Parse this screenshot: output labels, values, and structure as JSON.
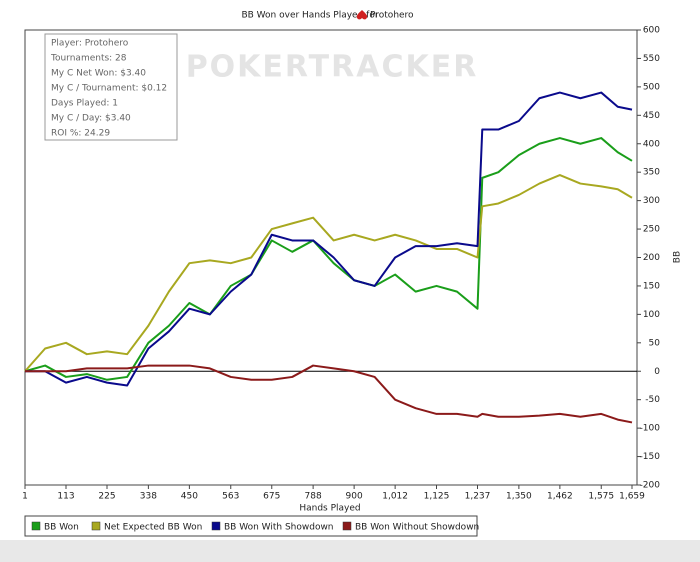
{
  "chart_data": {
    "type": "line",
    "title": "BB Won over Hands Played for",
    "player": "Protohero",
    "watermark": "POKERTRACKER",
    "info": [
      "Player: Protohero",
      "Tournaments: 28",
      "My C Net Won: $3.40",
      "My C / Tournament: $0.12",
      "Days Played: 1",
      "My C / Day: $3.40",
      "ROI %: 24.29"
    ],
    "xlabel": "Hands Played",
    "ylabel": "BB",
    "xlim": [
      1,
      1659
    ],
    "xticks": [
      1,
      113,
      225,
      338,
      450,
      563,
      675,
      788,
      900,
      {
        "value": 1012,
        "label": "1,012"
      },
      {
        "value": 1125,
        "label": "1,125"
      },
      {
        "value": 1237,
        "label": "1,237"
      },
      {
        "value": 1350,
        "label": "1,350"
      },
      {
        "value": 1462,
        "label": "1,462"
      },
      {
        "value": 1575,
        "label": "1,575"
      },
      {
        "value": 1659,
        "label": "1,659"
      }
    ],
    "ylim": [
      -200,
      600
    ],
    "yticks": [
      600,
      550,
      500,
      450,
      400,
      350,
      300,
      250,
      200,
      150,
      100,
      50,
      0,
      -50,
      -100,
      -150,
      -200
    ],
    "x": [
      1,
      56,
      113,
      170,
      225,
      280,
      338,
      394,
      450,
      506,
      563,
      619,
      675,
      731,
      788,
      844,
      900,
      956,
      1012,
      1068,
      1125,
      1181,
      1237,
      1250,
      1294,
      1350,
      1406,
      1462,
      1518,
      1575,
      1620,
      1659
    ],
    "series": [
      {
        "name": "BB Won",
        "color": "#1a9e1a",
        "values": [
          0,
          10,
          -10,
          -5,
          -15,
          -10,
          50,
          80,
          120,
          100,
          150,
          170,
          230,
          210,
          230,
          190,
          160,
          150,
          170,
          140,
          150,
          140,
          110,
          340,
          350,
          380,
          400,
          410,
          400,
          410,
          385,
          370
        ]
      },
      {
        "name": "Net Expected BB Won",
        "color": "#a8a820",
        "values": [
          0,
          40,
          50,
          30,
          35,
          30,
          80,
          140,
          190,
          195,
          190,
          200,
          250,
          260,
          270,
          230,
          240,
          230,
          240,
          230,
          215,
          215,
          200,
          290,
          295,
          310,
          330,
          345,
          330,
          325,
          320,
          305
        ]
      },
      {
        "name": "BB Won With Showdown",
        "color": "#0a0a8c",
        "values": [
          0,
          0,
          -20,
          -10,
          -20,
          -25,
          40,
          70,
          110,
          100,
          140,
          170,
          240,
          230,
          230,
          200,
          160,
          150,
          200,
          220,
          220,
          225,
          220,
          425,
          425,
          440,
          480,
          490,
          480,
          490,
          465,
          460
        ]
      },
      {
        "name": "BB Won Without Showdown",
        "color": "#8b1a1a",
        "values": [
          0,
          0,
          0,
          5,
          5,
          5,
          10,
          10,
          10,
          5,
          -10,
          -15,
          -15,
          -10,
          10,
          5,
          0,
          -10,
          -50,
          -65,
          -75,
          -75,
          -80,
          -75,
          -80,
          -80,
          -78,
          -75,
          -80,
          -75,
          -85,
          -90
        ]
      }
    ]
  }
}
